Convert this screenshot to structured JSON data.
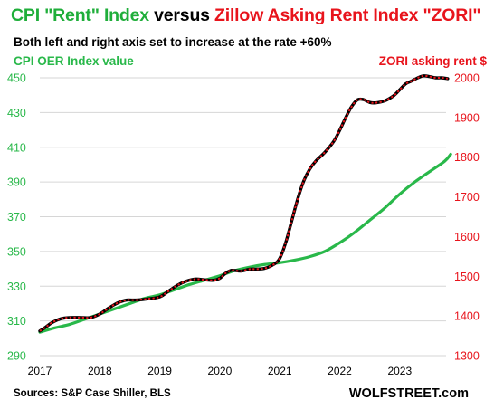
{
  "title_parts": [
    {
      "text": "CPI \"Rent\" Index ",
      "color": "#1fae3a"
    },
    {
      "text": "versus ",
      "color": "#000000"
    },
    {
      "text": "Zillow Asking Rent Index \"ZORI\"",
      "color": "#e8141c"
    }
  ],
  "colors": {
    "cpi": "#29b84a",
    "zori": "#e8141c",
    "zori_line": "#000000",
    "grid": "#d6d6d6"
  },
  "footer": {
    "source": "Sources: S&P Case Shiller, BLS",
    "brand": "WOLFSTREET.com"
  },
  "chart_data": {
    "type": "line",
    "subtitle": "Both left and right axis set to increase at the rate +60%",
    "ylabel_left": "CPI OER  Index value",
    "ylabel_right": "ZORI asking rent $",
    "x_ticks": [
      "2017",
      "2018",
      "2019",
      "2020",
      "2021",
      "2022",
      "2023"
    ],
    "x_range": [
      2017.0,
      2023.9
    ],
    "y_left": {
      "range": [
        290,
        450
      ],
      "ticks": [
        290,
        310,
        330,
        350,
        370,
        390,
        410,
        430,
        450
      ]
    },
    "y_right": {
      "range": [
        1300,
        2000
      ],
      "ticks": [
        1300,
        1400,
        1500,
        1600,
        1700,
        1800,
        1900,
        2000
      ]
    },
    "grid": "horizontal",
    "series": [
      {
        "axis": "left",
        "x": [
          2017.0,
          2017.25,
          2017.5,
          2017.75,
          2018.0,
          2018.25,
          2018.5,
          2018.75,
          2019.0,
          2019.25,
          2019.5,
          2019.75,
          2020.0,
          2020.25,
          2020.5,
          2020.75,
          2021.0,
          2021.25,
          2021.5,
          2021.75,
          2022.0,
          2022.25,
          2022.5,
          2022.75,
          2023.0,
          2023.25,
          2023.5,
          2023.75,
          2023.85
        ],
        "values": [
          303.5,
          306,
          308,
          311,
          314,
          317,
          320,
          323,
          325,
          328,
          331,
          333.5,
          336,
          339,
          341,
          342.5,
          343.5,
          345,
          347,
          350,
          355,
          361,
          368,
          375,
          383,
          390,
          396,
          402,
          406
        ]
      },
      {
        "axis": "right",
        "x": [
          2017.0,
          2017.1,
          2017.2,
          2017.35,
          2017.5,
          2017.7,
          2017.85,
          2018.0,
          2018.15,
          2018.3,
          2018.45,
          2018.6,
          2018.8,
          2019.0,
          2019.15,
          2019.3,
          2019.45,
          2019.6,
          2019.75,
          2019.9,
          2020.0,
          2020.1,
          2020.2,
          2020.35,
          2020.5,
          2020.6,
          2020.75,
          2020.9,
          2021.0,
          2021.1,
          2021.2,
          2021.3,
          2021.4,
          2021.5,
          2021.6,
          2021.75,
          2021.9,
          2022.0,
          2022.1,
          2022.2,
          2022.3,
          2022.4,
          2022.5,
          2022.6,
          2022.75,
          2022.9,
          2023.0,
          2023.1,
          2023.2,
          2023.3,
          2023.4,
          2023.5,
          2023.6,
          2023.7,
          2023.8
        ],
        "values": [
          1362,
          1372,
          1383,
          1393,
          1396,
          1396,
          1396,
          1405,
          1420,
          1433,
          1440,
          1440,
          1443,
          1448,
          1463,
          1478,
          1488,
          1493,
          1491,
          1490,
          1495,
          1508,
          1515,
          1513,
          1518,
          1518,
          1520,
          1530,
          1545,
          1585,
          1640,
          1695,
          1740,
          1770,
          1790,
          1812,
          1840,
          1868,
          1900,
          1928,
          1945,
          1945,
          1938,
          1937,
          1942,
          1955,
          1970,
          1985,
          1992,
          2000,
          2005,
          2003,
          2000,
          2000,
          1998
        ]
      }
    ]
  }
}
